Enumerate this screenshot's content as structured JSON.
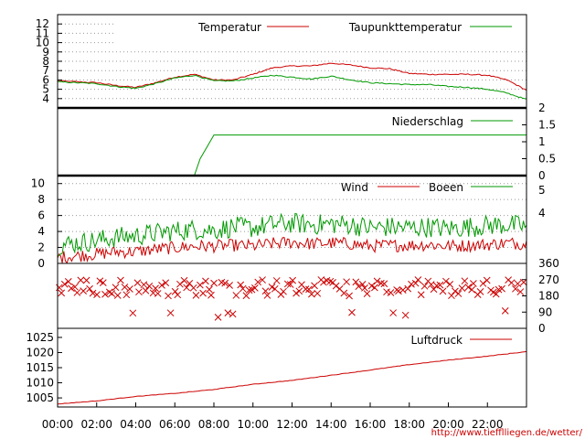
{
  "source_url": "http://www.tiefflliegen.de/wetter/",
  "x_ticks": [
    "00:00",
    "02:00",
    "04:00",
    "06:00",
    "08:00",
    "10:00",
    "12:00",
    "14:00",
    "16:00",
    "18:00",
    "20:00",
    "22:00"
  ],
  "chart_data": [
    {
      "type": "line",
      "panel": "temperature",
      "yticks": [
        4,
        5,
        6,
        7,
        8,
        9,
        10,
        11,
        12
      ],
      "ylim": [
        3,
        13
      ],
      "x_hours": [
        0,
        1,
        2,
        3,
        4,
        5,
        6,
        7,
        8,
        9,
        10,
        11,
        12,
        13,
        14,
        15,
        16,
        17,
        18,
        19,
        20,
        21,
        22,
        23,
        24
      ],
      "series": [
        {
          "name": "Temperatur",
          "color": "#cc0000",
          "values": [
            5.9,
            5.8,
            5.7,
            5.4,
            5.2,
            5.7,
            6.3,
            6.6,
            6.0,
            6.0,
            6.6,
            7.3,
            7.5,
            7.5,
            7.8,
            7.6,
            7.3,
            7.2,
            6.7,
            6.6,
            6.6,
            6.6,
            6.5,
            6.0,
            4.9
          ]
        },
        {
          "name": "Taupunkttemperatur",
          "color": "#009900",
          "values": [
            5.8,
            5.7,
            5.6,
            5.3,
            5.1,
            5.6,
            6.2,
            6.5,
            5.9,
            5.9,
            6.2,
            6.5,
            6.3,
            6.1,
            6.4,
            6.0,
            5.7,
            5.6,
            5.5,
            5.5,
            5.3,
            5.2,
            5.0,
            4.6,
            3.9
          ]
        }
      ]
    },
    {
      "type": "line",
      "panel": "precipitation",
      "right_ticks": [
        "2",
        "1.5",
        "1",
        "0.5",
        "0"
      ],
      "ylim": [
        0,
        2
      ],
      "series": [
        {
          "name": "Niederschlag",
          "color": "#009900",
          "points": [
            [
              7.0,
              0
            ],
            [
              7.3,
              0.5
            ],
            [
              7.7,
              0.9
            ],
            [
              8.0,
              1.2
            ],
            [
              24,
              1.2
            ]
          ]
        }
      ]
    },
    {
      "type": "line",
      "panel": "wind",
      "yticks": [
        0,
        2,
        4,
        6,
        8,
        10
      ],
      "right_ticks": [
        "5",
        "4"
      ],
      "ylim": [
        0,
        11
      ],
      "x_hours": [
        0,
        1,
        2,
        3,
        4,
        5,
        6,
        7,
        8,
        9,
        10,
        11,
        12,
        13,
        14,
        15,
        16,
        17,
        18,
        19,
        20,
        21,
        22,
        23,
        24
      ],
      "series": [
        {
          "name": "Wind",
          "color": "#cc0000",
          "values": [
            0.6,
            0.8,
            1.0,
            1.3,
            1.3,
            1.6,
            1.8,
            2.0,
            2.0,
            2.1,
            2.0,
            2.3,
            2.5,
            2.3,
            2.4,
            2.3,
            2.0,
            2.1,
            2.1,
            2.2,
            2.0,
            2.1,
            2.2,
            2.4,
            2.3
          ]
        },
        {
          "name": "Boeen",
          "color": "#009900",
          "values": [
            2.0,
            2.3,
            2.6,
            3.0,
            3.2,
            3.5,
            3.8,
            4.0,
            3.9,
            4.3,
            4.2,
            4.6,
            4.8,
            4.6,
            4.7,
            4.6,
            4.2,
            4.3,
            4.2,
            4.3,
            4.1,
            4.3,
            4.5,
            4.6,
            4.4
          ]
        }
      ]
    },
    {
      "type": "scatter",
      "panel": "wind-direction",
      "right_ticks": [
        "360",
        "270",
        "180",
        "90",
        "0"
      ],
      "ylim": [
        0,
        360
      ],
      "series": [
        {
          "name": "",
          "color": "#cc0000",
          "marker": "x",
          "typical_range": [
            180,
            270
          ]
        }
      ]
    },
    {
      "type": "line",
      "panel": "pressure",
      "yticks": [
        1005,
        1010,
        1015,
        1020,
        1025
      ],
      "ylim": [
        1002,
        1028
      ],
      "x_hours": [
        0,
        2,
        4,
        6,
        8,
        10,
        12,
        14,
        16,
        18,
        20,
        22,
        24
      ],
      "series": [
        {
          "name": "Luftdruck",
          "color": "#cc0000",
          "values": [
            1003.0,
            1004.0,
            1005.5,
            1006.5,
            1007.8,
            1009.5,
            1010.8,
            1012.5,
            1014.2,
            1016.0,
            1017.5,
            1018.8,
            1020.3
          ]
        }
      ]
    }
  ]
}
